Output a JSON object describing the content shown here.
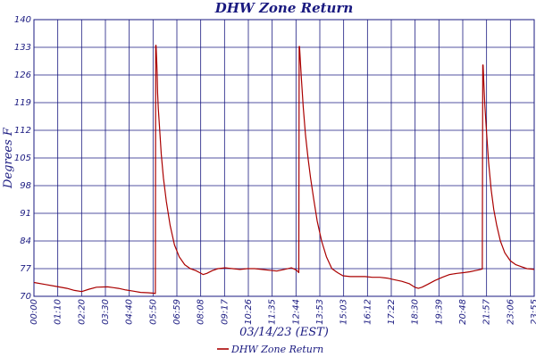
{
  "chart_data": {
    "type": "line",
    "title": "DHW Zone Return",
    "xlabel": "03/14/23 (EST)",
    "ylabel": "Degrees F",
    "ylim": [
      70,
      140
    ],
    "y_ticks": [
      70,
      77,
      84,
      91,
      98,
      105,
      112,
      119,
      126,
      133,
      140
    ],
    "x_ticks": [
      "00:00",
      "01:10",
      "02:20",
      "03:30",
      "04:40",
      "05:50",
      "06:59",
      "08:08",
      "09:17",
      "10:26",
      "11:35",
      "12:44",
      "13:53",
      "15:03",
      "16:12",
      "17:22",
      "18:30",
      "19:39",
      "20:48",
      "21:57",
      "23:06",
      "23:55"
    ],
    "grid": true,
    "legend": "bottom-center",
    "series": [
      {
        "name": "DHW Zone Return",
        "color": "#aa0000",
        "points": [
          [
            0,
            73.5
          ],
          [
            30,
            73.0
          ],
          [
            60,
            72.5
          ],
          [
            90,
            72.0
          ],
          [
            110,
            71.5
          ],
          [
            130,
            71.2
          ],
          [
            150,
            71.8
          ],
          [
            170,
            72.3
          ],
          [
            200,
            72.4
          ],
          [
            230,
            72.0
          ],
          [
            250,
            71.6
          ],
          [
            270,
            71.3
          ],
          [
            290,
            71.0
          ],
          [
            310,
            70.9
          ],
          [
            325,
            70.8
          ],
          [
            330,
            70.7
          ],
          [
            331,
            133.5
          ],
          [
            332,
            133.5
          ],
          [
            334,
            129
          ],
          [
            335,
            126.5
          ],
          [
            336,
            121.5
          ],
          [
            338,
            117.5
          ],
          [
            342,
            112
          ],
          [
            346,
            106
          ],
          [
            352,
            100
          ],
          [
            360,
            94
          ],
          [
            370,
            88
          ],
          [
            382,
            83
          ],
          [
            395,
            80
          ],
          [
            410,
            78
          ],
          [
            425,
            77
          ],
          [
            440,
            76.5
          ],
          [
            450,
            76
          ],
          [
            460,
            75.5
          ],
          [
            470,
            75.8
          ],
          [
            485,
            76.5
          ],
          [
            500,
            77
          ],
          [
            520,
            77.2
          ],
          [
            540,
            77.0
          ],
          [
            560,
            76.8
          ],
          [
            580,
            77.0
          ],
          [
            600,
            77.0
          ],
          [
            620,
            76.8
          ],
          [
            640,
            76.6
          ],
          [
            660,
            76.4
          ],
          [
            680,
            76.8
          ],
          [
            700,
            77.2
          ],
          [
            710,
            76.8
          ],
          [
            715,
            76.5
          ],
          [
            720,
            76
          ],
          [
            721,
            133.2
          ],
          [
            722,
            133.2
          ],
          [
            724,
            130
          ],
          [
            727,
            125
          ],
          [
            732,
            118
          ],
          [
            738,
            111
          ],
          [
            745,
            105
          ],
          [
            752,
            100
          ],
          [
            760,
            95
          ],
          [
            770,
            89
          ],
          [
            782,
            84
          ],
          [
            795,
            80
          ],
          [
            810,
            77
          ],
          [
            825,
            76
          ],
          [
            840,
            75.2
          ],
          [
            860,
            75.0
          ],
          [
            880,
            75.0
          ],
          [
            900,
            75.0
          ],
          [
            920,
            74.8
          ],
          [
            940,
            74.8
          ],
          [
            960,
            74.6
          ],
          [
            980,
            74.2
          ],
          [
            1000,
            73.8
          ],
          [
            1020,
            73.2
          ],
          [
            1035,
            72.3
          ],
          [
            1045,
            72.0
          ],
          [
            1055,
            72.3
          ],
          [
            1070,
            73.0
          ],
          [
            1090,
            74.0
          ],
          [
            1110,
            74.8
          ],
          [
            1130,
            75.5
          ],
          [
            1150,
            75.8
          ],
          [
            1170,
            76.0
          ],
          [
            1185,
            76.2
          ],
          [
            1200,
            76.5
          ],
          [
            1210,
            76.7
          ],
          [
            1219,
            76.9
          ],
          [
            1220,
            128.5
          ],
          [
            1221,
            128.5
          ],
          [
            1223,
            124
          ],
          [
            1226,
            118
          ],
          [
            1230,
            112
          ],
          [
            1236,
            104
          ],
          [
            1243,
            97
          ],
          [
            1250,
            92
          ],
          [
            1258,
            88
          ],
          [
            1268,
            84
          ],
          [
            1280,
            81
          ],
          [
            1295,
            79
          ],
          [
            1310,
            78
          ],
          [
            1325,
            77.5
          ],
          [
            1340,
            77.0
          ],
          [
            1350,
            76.9
          ],
          [
            1360,
            76.8
          ]
        ]
      }
    ]
  }
}
